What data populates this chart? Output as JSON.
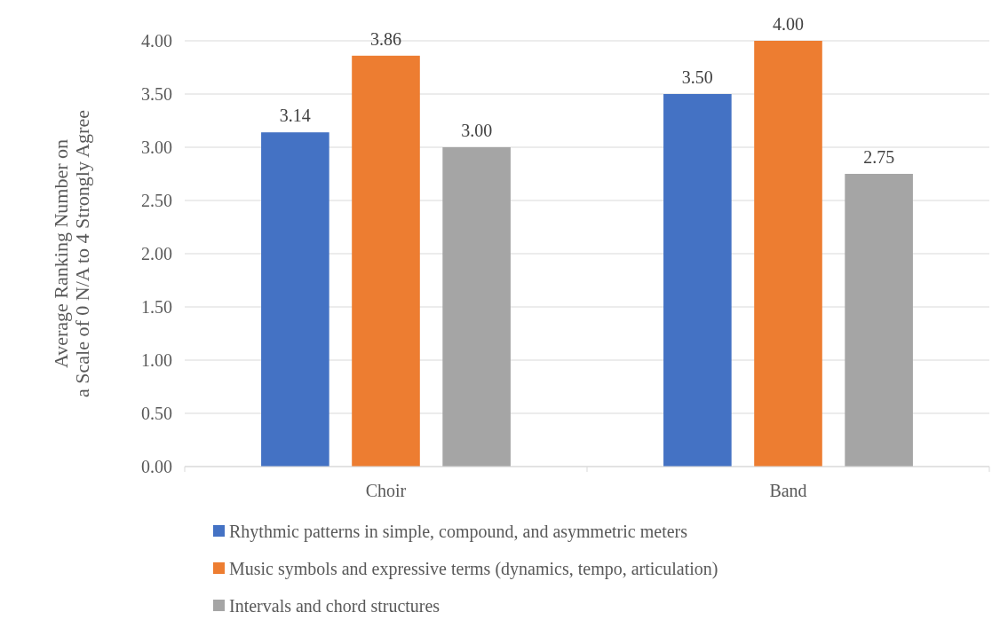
{
  "chart_data": {
    "type": "bar",
    "ylabel": "Average Ranking Number on\na Scale of 0 N/A to 4 Strongly Agree",
    "categories": [
      "Choir",
      "Band"
    ],
    "series": [
      {
        "name": "Rhythmic patterns in simple, compound, and asymmetric meters",
        "color": "#4472c4",
        "values": [
          3.14,
          3.5
        ],
        "value_labels": [
          "3.14",
          "3.50"
        ]
      },
      {
        "name": "Music symbols and expressive terms (dynamics, tempo, articulation)",
        "color": "#ed7d31",
        "values": [
          3.86,
          4.0
        ],
        "value_labels": [
          "3.86",
          "4.00"
        ]
      },
      {
        "name": "Intervals and chord structures",
        "color": "#a5a5a5",
        "values": [
          3.0,
          2.75
        ],
        "value_labels": [
          "3.00",
          "2.75"
        ]
      }
    ],
    "ylim": [
      0,
      4
    ],
    "yticks": [
      {
        "value": 0,
        "label": "0.00"
      },
      {
        "value": 0.5,
        "label": "0.50"
      },
      {
        "value": 1,
        "label": "1.00"
      },
      {
        "value": 1.5,
        "label": "1.50"
      },
      {
        "value": 2,
        "label": "2.00"
      },
      {
        "value": 2.5,
        "label": "2.50"
      },
      {
        "value": 3,
        "label": "3.00"
      },
      {
        "value": 3.5,
        "label": "3.50"
      },
      {
        "value": 4,
        "label": "4.00"
      }
    ],
    "grid": "y",
    "legend": "bottom"
  }
}
